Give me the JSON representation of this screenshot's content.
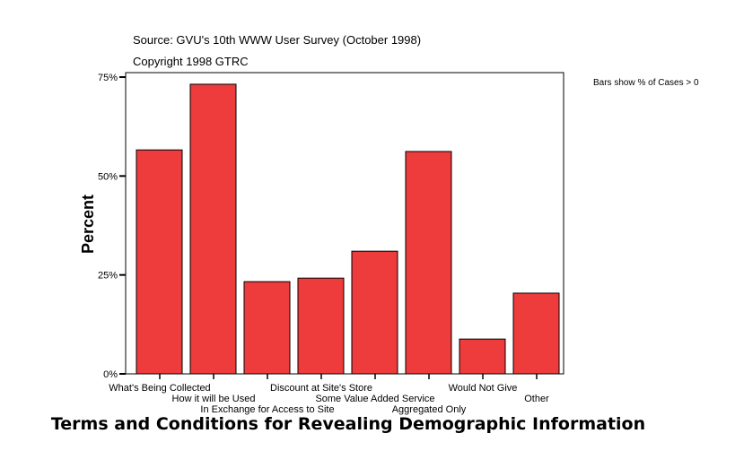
{
  "chart_data": {
    "type": "bar",
    "title": "Terms and Conditions for Revealing Demographic Information",
    "subtitle": [
      "Source: GVU's 10th WWW User Survey (October 1998)",
      "Copyright 1998 GTRC"
    ],
    "note": "Bars show % of Cases > 0",
    "xlabel": "",
    "ylabel": "Percent",
    "ylim": [
      0,
      75
    ],
    "yticks": [
      0,
      25,
      50,
      75
    ],
    "ytick_labels": [
      "0%",
      "25%",
      "50%",
      "75%"
    ],
    "grid": false,
    "bar_color": "#EE3B3B",
    "categories": [
      "What's Being Collected",
      "How it will be Used",
      "In Exchange for Access to Site",
      "Discount at Site's Store",
      "Some Value Added Service",
      "Aggregated Only",
      "Would Not Give",
      "Other"
    ],
    "values": [
      56.6,
      73.2,
      23.3,
      24.2,
      31.0,
      56.2,
      8.8,
      20.4
    ]
  }
}
